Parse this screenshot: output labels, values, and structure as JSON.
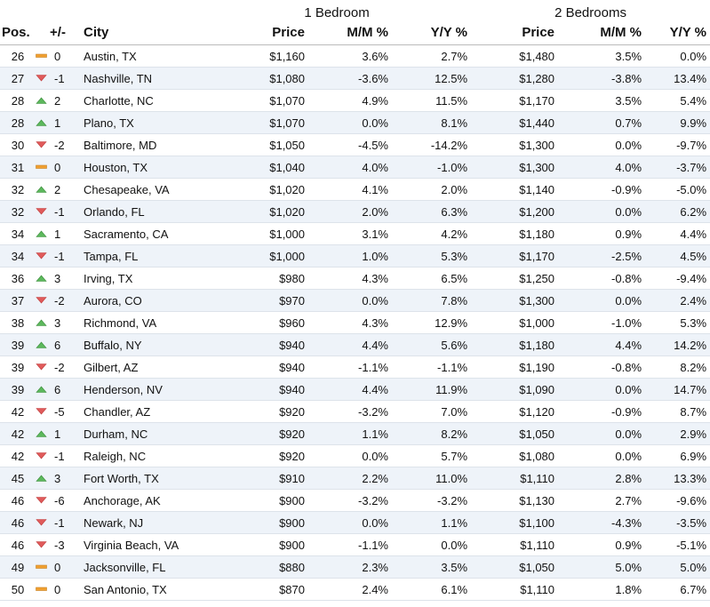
{
  "groups": {
    "one_bedroom": "1 Bedroom",
    "two_bedrooms": "2 Bedrooms"
  },
  "headers": {
    "pos": "Pos.",
    "change": "+/-",
    "city": "City",
    "price": "Price",
    "mm": "M/M %",
    "yy": "Y/Y %"
  },
  "colors": {
    "up": "#5cb85c",
    "down": "#e05a5a",
    "same": "#f0a030",
    "row_alt": "#eef3f9"
  },
  "indicator_icons": {
    "up": "triangle-up-icon",
    "down": "triangle-down-icon",
    "same": "dash-icon"
  },
  "rows": [
    {
      "pos": "26",
      "dir": "same",
      "change": "0",
      "city": "Austin, TX",
      "p1": "$1,160",
      "mm1": "3.6%",
      "yy1": "2.7%",
      "p2": "$1,480",
      "mm2": "3.5%",
      "yy2": "0.0%"
    },
    {
      "pos": "27",
      "dir": "down",
      "change": "-1",
      "city": "Nashville, TN",
      "p1": "$1,080",
      "mm1": "-3.6%",
      "yy1": "12.5%",
      "p2": "$1,280",
      "mm2": "-3.8%",
      "yy2": "13.4%"
    },
    {
      "pos": "28",
      "dir": "up",
      "change": "2",
      "city": "Charlotte, NC",
      "p1": "$1,070",
      "mm1": "4.9%",
      "yy1": "11.5%",
      "p2": "$1,170",
      "mm2": "3.5%",
      "yy2": "5.4%"
    },
    {
      "pos": "28",
      "dir": "up",
      "change": "1",
      "city": "Plano, TX",
      "p1": "$1,070",
      "mm1": "0.0%",
      "yy1": "8.1%",
      "p2": "$1,440",
      "mm2": "0.7%",
      "yy2": "9.9%"
    },
    {
      "pos": "30",
      "dir": "down",
      "change": "-2",
      "city": "Baltimore, MD",
      "p1": "$1,050",
      "mm1": "-4.5%",
      "yy1": "-14.2%",
      "p2": "$1,300",
      "mm2": "0.0%",
      "yy2": "-9.7%"
    },
    {
      "pos": "31",
      "dir": "same",
      "change": "0",
      "city": "Houston, TX",
      "p1": "$1,040",
      "mm1": "4.0%",
      "yy1": "-1.0%",
      "p2": "$1,300",
      "mm2": "4.0%",
      "yy2": "-3.7%"
    },
    {
      "pos": "32",
      "dir": "up",
      "change": "2",
      "city": "Chesapeake, VA",
      "p1": "$1,020",
      "mm1": "4.1%",
      "yy1": "2.0%",
      "p2": "$1,140",
      "mm2": "-0.9%",
      "yy2": "-5.0%"
    },
    {
      "pos": "32",
      "dir": "down",
      "change": "-1",
      "city": "Orlando, FL",
      "p1": "$1,020",
      "mm1": "2.0%",
      "yy1": "6.3%",
      "p2": "$1,200",
      "mm2": "0.0%",
      "yy2": "6.2%"
    },
    {
      "pos": "34",
      "dir": "up",
      "change": "1",
      "city": "Sacramento, CA",
      "p1": "$1,000",
      "mm1": "3.1%",
      "yy1": "4.2%",
      "p2": "$1,180",
      "mm2": "0.9%",
      "yy2": "4.4%"
    },
    {
      "pos": "34",
      "dir": "down",
      "change": "-1",
      "city": "Tampa, FL",
      "p1": "$1,000",
      "mm1": "1.0%",
      "yy1": "5.3%",
      "p2": "$1,170",
      "mm2": "-2.5%",
      "yy2": "4.5%"
    },
    {
      "pos": "36",
      "dir": "up",
      "change": "3",
      "city": "Irving, TX",
      "p1": "$980",
      "mm1": "4.3%",
      "yy1": "6.5%",
      "p2": "$1,250",
      "mm2": "-0.8%",
      "yy2": "-9.4%"
    },
    {
      "pos": "37",
      "dir": "down",
      "change": "-2",
      "city": "Aurora, CO",
      "p1": "$970",
      "mm1": "0.0%",
      "yy1": "7.8%",
      "p2": "$1,300",
      "mm2": "0.0%",
      "yy2": "2.4%"
    },
    {
      "pos": "38",
      "dir": "up",
      "change": "3",
      "city": "Richmond, VA",
      "p1": "$960",
      "mm1": "4.3%",
      "yy1": "12.9%",
      "p2": "$1,000",
      "mm2": "-1.0%",
      "yy2": "5.3%"
    },
    {
      "pos": "39",
      "dir": "up",
      "change": "6",
      "city": "Buffalo, NY",
      "p1": "$940",
      "mm1": "4.4%",
      "yy1": "5.6%",
      "p2": "$1,180",
      "mm2": "4.4%",
      "yy2": "14.2%"
    },
    {
      "pos": "39",
      "dir": "down",
      "change": "-2",
      "city": "Gilbert, AZ",
      "p1": "$940",
      "mm1": "-1.1%",
      "yy1": "-1.1%",
      "p2": "$1,190",
      "mm2": "-0.8%",
      "yy2": "8.2%"
    },
    {
      "pos": "39",
      "dir": "up",
      "change": "6",
      "city": "Henderson, NV",
      "p1": "$940",
      "mm1": "4.4%",
      "yy1": "11.9%",
      "p2": "$1,090",
      "mm2": "0.0%",
      "yy2": "14.7%"
    },
    {
      "pos": "42",
      "dir": "down",
      "change": "-5",
      "city": "Chandler, AZ",
      "p1": "$920",
      "mm1": "-3.2%",
      "yy1": "7.0%",
      "p2": "$1,120",
      "mm2": "-0.9%",
      "yy2": "8.7%"
    },
    {
      "pos": "42",
      "dir": "up",
      "change": "1",
      "city": "Durham, NC",
      "p1": "$920",
      "mm1": "1.1%",
      "yy1": "8.2%",
      "p2": "$1,050",
      "mm2": "0.0%",
      "yy2": "2.9%"
    },
    {
      "pos": "42",
      "dir": "down",
      "change": "-1",
      "city": "Raleigh, NC",
      "p1": "$920",
      "mm1": "0.0%",
      "yy1": "5.7%",
      "p2": "$1,080",
      "mm2": "0.0%",
      "yy2": "6.9%"
    },
    {
      "pos": "45",
      "dir": "up",
      "change": "3",
      "city": "Fort Worth, TX",
      "p1": "$910",
      "mm1": "2.2%",
      "yy1": "11.0%",
      "p2": "$1,110",
      "mm2": "2.8%",
      "yy2": "13.3%"
    },
    {
      "pos": "46",
      "dir": "down",
      "change": "-6",
      "city": "Anchorage, AK",
      "p1": "$900",
      "mm1": "-3.2%",
      "yy1": "-3.2%",
      "p2": "$1,130",
      "mm2": "2.7%",
      "yy2": "-9.6%"
    },
    {
      "pos": "46",
      "dir": "down",
      "change": "-1",
      "city": "Newark, NJ",
      "p1": "$900",
      "mm1": "0.0%",
      "yy1": "1.1%",
      "p2": "$1,100",
      "mm2": "-4.3%",
      "yy2": "-3.5%"
    },
    {
      "pos": "46",
      "dir": "down",
      "change": "-3",
      "city": "Virginia Beach, VA",
      "p1": "$900",
      "mm1": "-1.1%",
      "yy1": "0.0%",
      "p2": "$1,110",
      "mm2": "0.9%",
      "yy2": "-5.1%"
    },
    {
      "pos": "49",
      "dir": "same",
      "change": "0",
      "city": "Jacksonville, FL",
      "p1": "$880",
      "mm1": "2.3%",
      "yy1": "3.5%",
      "p2": "$1,050",
      "mm2": "5.0%",
      "yy2": "5.0%"
    },
    {
      "pos": "50",
      "dir": "same",
      "change": "0",
      "city": "San Antonio, TX",
      "p1": "$870",
      "mm1": "2.4%",
      "yy1": "6.1%",
      "p2": "$1,110",
      "mm2": "1.8%",
      "yy2": "6.7%"
    }
  ]
}
